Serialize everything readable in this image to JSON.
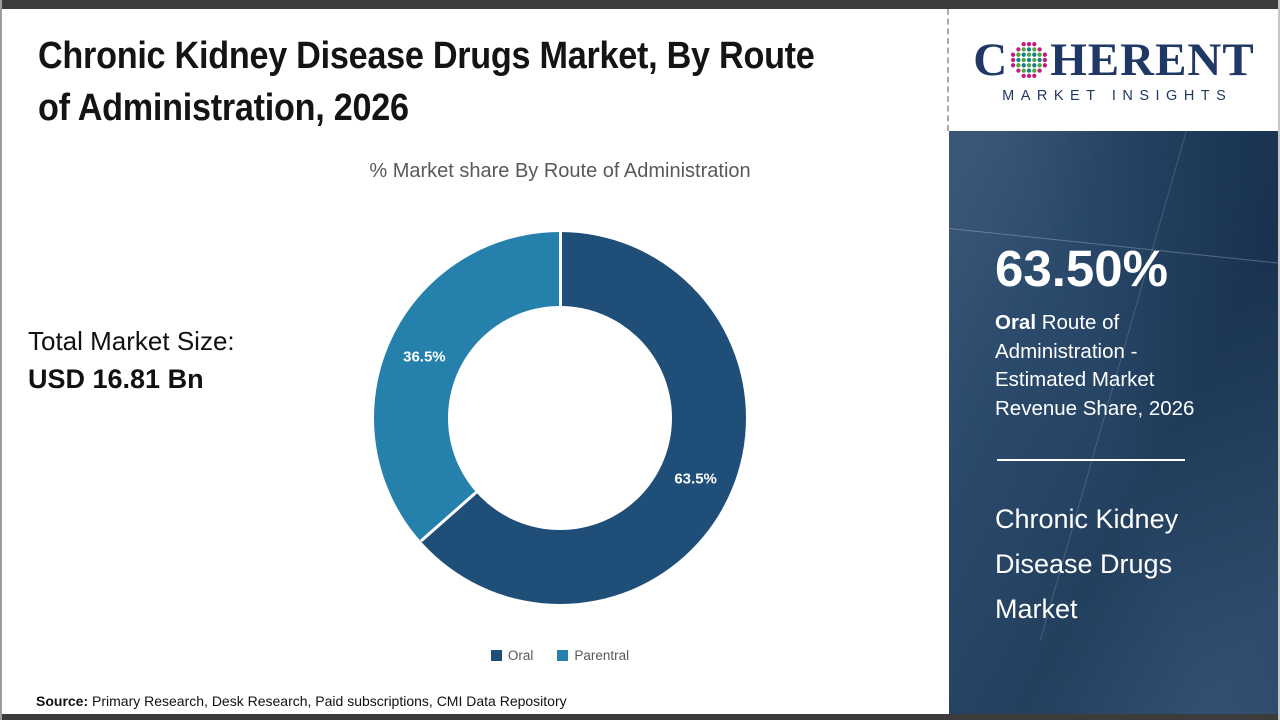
{
  "header": {
    "title_line1": "Chronic Kidney Disease Drugs Market, By Route",
    "title_line2": "of Administration, 2026"
  },
  "logo": {
    "brand_first_letter": "C",
    "brand_rest": "HERENT",
    "brand_subtitle": "MARKET INSIGHTS"
  },
  "main": {
    "total_market_label": "Total Market Size:",
    "total_market_value": "USD 16.81 Bn"
  },
  "chart_data": {
    "type": "pie",
    "subtype": "donut",
    "title": "% Market share By Route of Administration",
    "series": [
      {
        "name": "Oral",
        "value": 63.5,
        "label": "63.5%",
        "color": "#1F4E79"
      },
      {
        "name": "Parentral",
        "value": 36.5,
        "label": "36.5%",
        "color": "#2581AB"
      }
    ],
    "start_angle_deg": 0,
    "direction": "clockwise",
    "donut_hole_ratio": 0.6,
    "legend_position": "bottom",
    "slice_label_color": "#FFFFFF"
  },
  "sidebar": {
    "stat_value": "63.50%",
    "stat_desc_bold": "Oral",
    "stat_desc_rest": " Route of Administration - Estimated Market Revenue Share, 2026",
    "panel_title": "Chronic Kidney Disease Drugs Market"
  },
  "footer": {
    "source_label": "Source:",
    "source_text": " Primary Research, Desk Research, Paid subscriptions, CMI Data Repository"
  },
  "colors": {
    "oral_slice": "#1F4E79",
    "parentral_slice": "#2581AB",
    "sidebar_bg": "#1E3F63",
    "logo_navy": "#1F3864",
    "logo_dot_teal": "#157E8C",
    "logo_dot_green": "#4FA83D",
    "logo_dot_magenta": "#C01D7E",
    "subtitle_gray": "#595959",
    "frame_dark": "#3C3C3C"
  }
}
